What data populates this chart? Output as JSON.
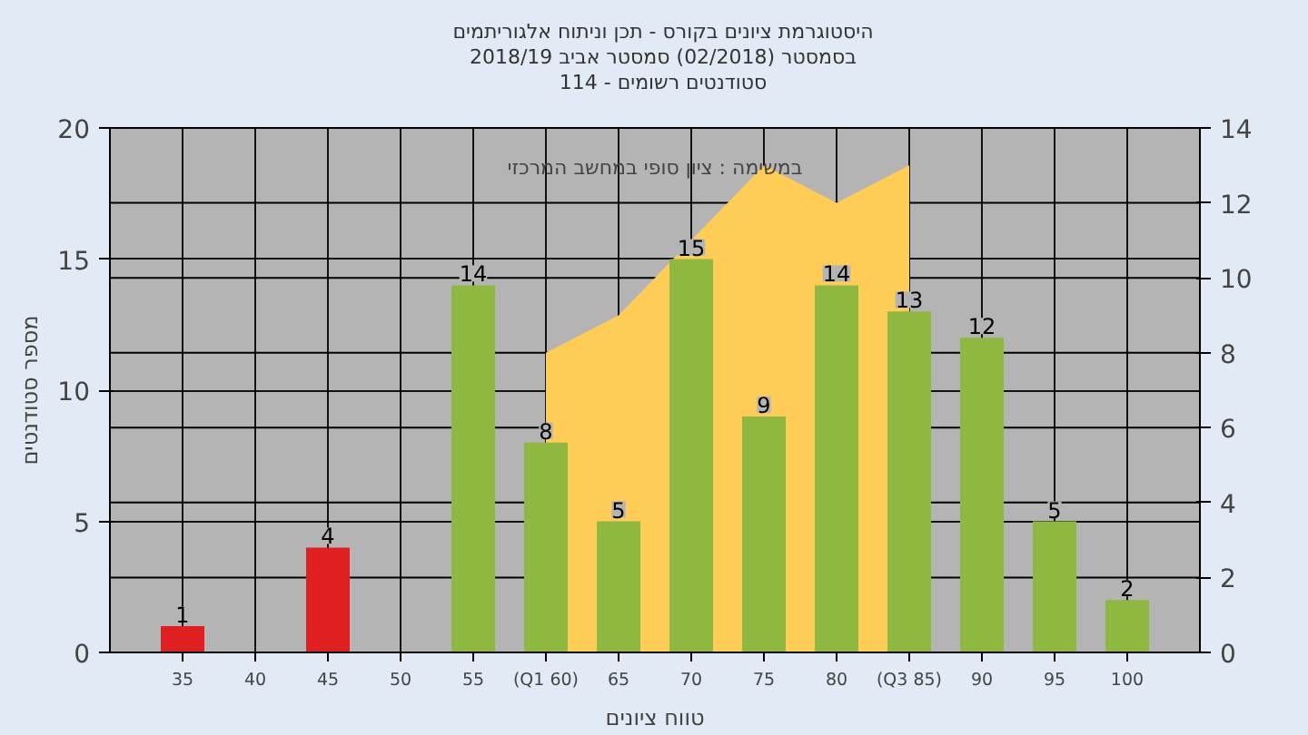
{
  "chart_data": {
    "type": "bar",
    "title": "היסטוגרמת ציונים בקורס - תכן וניתוח אלגוריתמים",
    "subtitle": "בסמסטר  (02/2018)  סמסטר אביב 2018/19\nסטודנטים רשומים - 114",
    "xlabel": "טווח ציונים",
    "ylabel": "מספר סטודנטים",
    "annotations": [
      "במשימה : ציון סופי במחשב המרכזי"
    ],
    "xlim": [
      30,
      105
    ],
    "xticks": [
      35,
      40,
      45,
      50,
      55,
      {
        "value": 60,
        "label": "(Q1 60)"
      },
      65,
      70,
      75,
      80,
      {
        "value": 85,
        "label": "(Q3 85)"
      },
      90,
      95,
      100
    ],
    "ylim": [
      0,
      20
    ],
    "yticks": [
      0,
      5,
      10,
      15,
      20
    ],
    "y2lim": [
      0,
      14
    ],
    "y2ticks": [
      0,
      2,
      4,
      6,
      8,
      10,
      12,
      14
    ],
    "grid": true,
    "series": [
      {
        "type": "area",
        "axis": "y2",
        "color": "#ffcc55",
        "x": [
          60,
          65,
          70,
          75,
          80,
          85
        ],
        "values": [
          8,
          9,
          null,
          13,
          12,
          13
        ]
      },
      {
        "x": [
          35,
          45,
          55,
          60,
          65,
          70,
          75,
          80,
          85,
          90,
          95,
          100
        ],
        "values": [
          1,
          4,
          14,
          8,
          5,
          15,
          9,
          14,
          13,
          12,
          5,
          2
        ],
        "value_labels": [
          "1",
          "4",
          "14",
          "8",
          "5",
          "15",
          "9",
          "14",
          "13",
          "12",
          "5",
          "2"
        ],
        "colors": [
          "#e02020",
          "#e02020",
          "#8fb840",
          "#8fb840",
          "#8fb840",
          "#8fb840",
          "#8fb840",
          "#8fb840",
          "#8fb840",
          "#8fb840",
          "#8fb840",
          "#8fb840"
        ]
      }
    ]
  }
}
